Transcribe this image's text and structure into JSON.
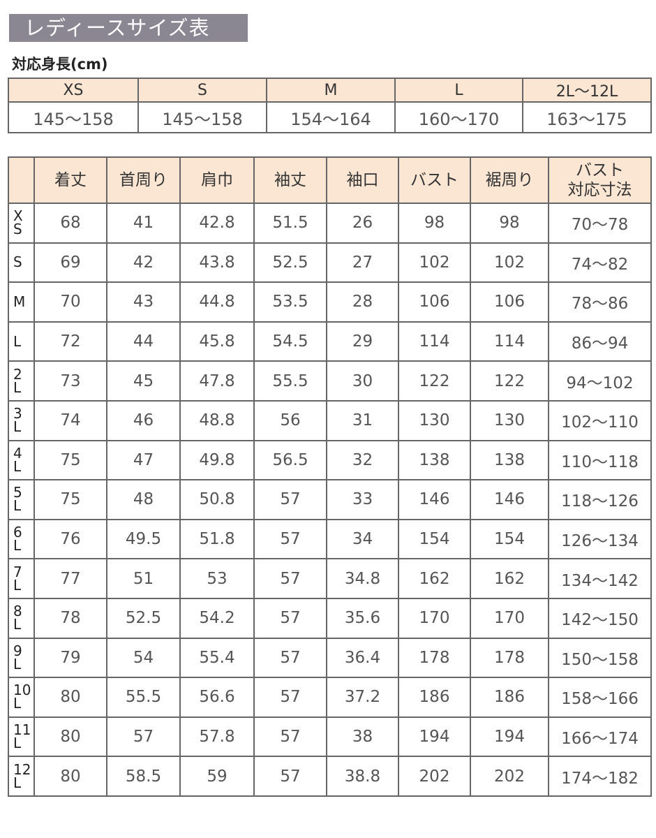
{
  "title": "レディースサイズ表",
  "subtitle": "対応身長(cm)",
  "height_table": {
    "headers": [
      "XS",
      "S",
      "M",
      "L",
      "2L〜12L"
    ],
    "values": [
      "145〜158",
      "145〜158",
      "154〜164",
      "160〜170",
      "163〜175"
    ]
  },
  "size_table": {
    "headers": [
      "",
      "着丈",
      "首周り",
      "肩巾",
      "袖丈",
      "袖口",
      "バスト",
      "裾周り",
      "バスト\n対応寸法"
    ],
    "rows": [
      {
        "size": "XS",
        "label": "X\nS",
        "values": [
          "68",
          "41",
          "42.8",
          "51.5",
          "26",
          "98",
          "98",
          "70〜78"
        ]
      },
      {
        "size": "S",
        "label": "S",
        "values": [
          "69",
          "42",
          "43.8",
          "52.5",
          "27",
          "102",
          "102",
          "74〜82"
        ]
      },
      {
        "size": "M",
        "label": "M",
        "values": [
          "70",
          "43",
          "44.8",
          "53.5",
          "28",
          "106",
          "106",
          "78〜86"
        ]
      },
      {
        "size": "L",
        "label": "L",
        "values": [
          "72",
          "44",
          "45.8",
          "54.5",
          "29",
          "114",
          "114",
          "86〜94"
        ]
      },
      {
        "size": "2L",
        "label": "2\nL",
        "values": [
          "73",
          "45",
          "47.8",
          "55.5",
          "30",
          "122",
          "122",
          "94〜102"
        ]
      },
      {
        "size": "3L",
        "label": "3\nL",
        "values": [
          "74",
          "46",
          "48.8",
          "56",
          "31",
          "130",
          "130",
          "102〜110"
        ]
      },
      {
        "size": "4L",
        "label": "4\nL",
        "values": [
          "75",
          "47",
          "49.8",
          "56.5",
          "32",
          "138",
          "138",
          "110〜118"
        ]
      },
      {
        "size": "5L",
        "label": "5\nL",
        "values": [
          "75",
          "48",
          "50.8",
          "57",
          "33",
          "146",
          "146",
          "118〜126"
        ]
      },
      {
        "size": "6L",
        "label": "6\nL",
        "values": [
          "76",
          "49.5",
          "51.8",
          "57",
          "34",
          "154",
          "154",
          "126〜134"
        ]
      },
      {
        "size": "7L",
        "label": "7\nL",
        "values": [
          "77",
          "51",
          "53",
          "57",
          "34.8",
          "162",
          "162",
          "134〜142"
        ]
      },
      {
        "size": "8L",
        "label": "8\nL",
        "values": [
          "78",
          "52.5",
          "54.2",
          "57",
          "35.6",
          "170",
          "170",
          "142〜150"
        ]
      },
      {
        "size": "9L",
        "label": "9\nL",
        "values": [
          "79",
          "54",
          "55.4",
          "57",
          "36.4",
          "178",
          "178",
          "150〜158"
        ]
      },
      {
        "size": "10L",
        "label": "10\nL",
        "values": [
          "80",
          "55.5",
          "56.6",
          "57",
          "37.2",
          "186",
          "186",
          "158〜166"
        ]
      },
      {
        "size": "11L",
        "label": "11\nL",
        "values": [
          "80",
          "57",
          "57.8",
          "57",
          "38",
          "194",
          "194",
          "166〜174"
        ]
      },
      {
        "size": "12L",
        "label": "12\nL",
        "values": [
          "80",
          "58.5",
          "59",
          "57",
          "38.8",
          "202",
          "202",
          "174〜182"
        ]
      }
    ]
  },
  "colors": {
    "title_bg": "#8a8792",
    "header_bg": "#fbe6d4",
    "border": "#666666"
  }
}
